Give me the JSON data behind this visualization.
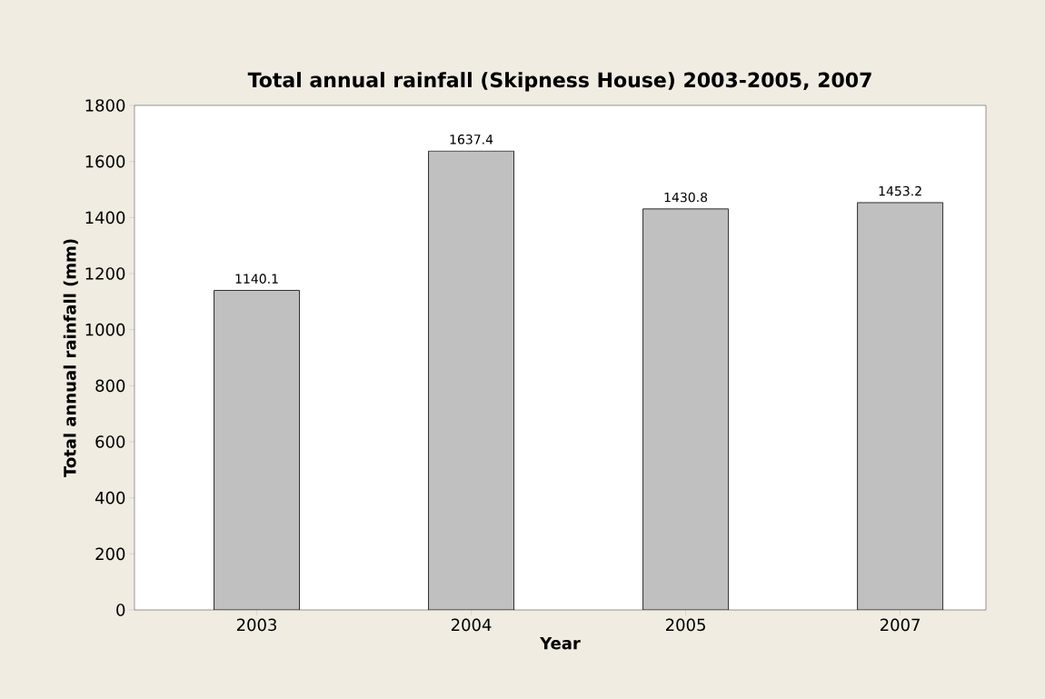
{
  "chart_data": {
    "type": "bar",
    "title": "Total annual rainfall (Skipness House) 2003-2005, 2007",
    "xlabel": "Year",
    "ylabel": "Total annual rainfall (mm)",
    "categories": [
      "2003",
      "2004",
      "2005",
      "2007"
    ],
    "values": [
      1140.1,
      1637.4,
      1430.8,
      1453.2
    ],
    "color": "#c0c0c0",
    "ylim": [
      0,
      1800
    ],
    "yticks": [
      0,
      200,
      400,
      600,
      800,
      1000,
      1200,
      1400,
      1600,
      1800
    ],
    "data_labels": true
  }
}
